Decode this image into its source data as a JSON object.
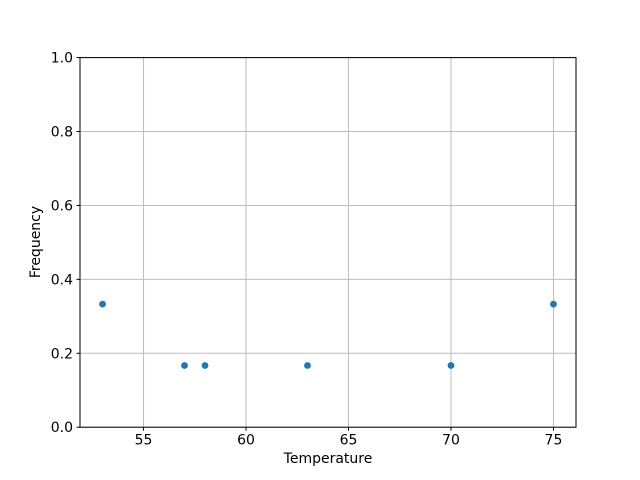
{
  "figure": {
    "background": "#ffffff"
  },
  "chart_data": {
    "type": "scatter",
    "title": "",
    "xlabel": "Temperature",
    "ylabel": "Frequency",
    "points": [
      {
        "x": 53,
        "y": 0.333
      },
      {
        "x": 57,
        "y": 0.167
      },
      {
        "x": 58,
        "y": 0.167
      },
      {
        "x": 63,
        "y": 0.167
      },
      {
        "x": 70,
        "y": 0.167
      },
      {
        "x": 75,
        "y": 0.333
      }
    ],
    "xlim": [
      51.9,
      76.1
    ],
    "ylim": [
      0.0,
      1.0
    ],
    "xtick_values": [
      55,
      60,
      65,
      70,
      75
    ],
    "xtick_labels": [
      "55",
      "60",
      "65",
      "70",
      "75"
    ],
    "ytick_values": [
      0.0,
      0.2,
      0.4,
      0.6,
      0.8,
      1.0
    ],
    "ytick_labels": [
      "0.0",
      "0.2",
      "0.4",
      "0.6",
      "0.8",
      "1.0"
    ],
    "grid": true,
    "legend": "none",
    "colors": {
      "marker": "#1f77b4",
      "grid": "#bdbdbd",
      "axis": "#000000",
      "tick_label": "#000000",
      "background": "#ffffff"
    }
  }
}
